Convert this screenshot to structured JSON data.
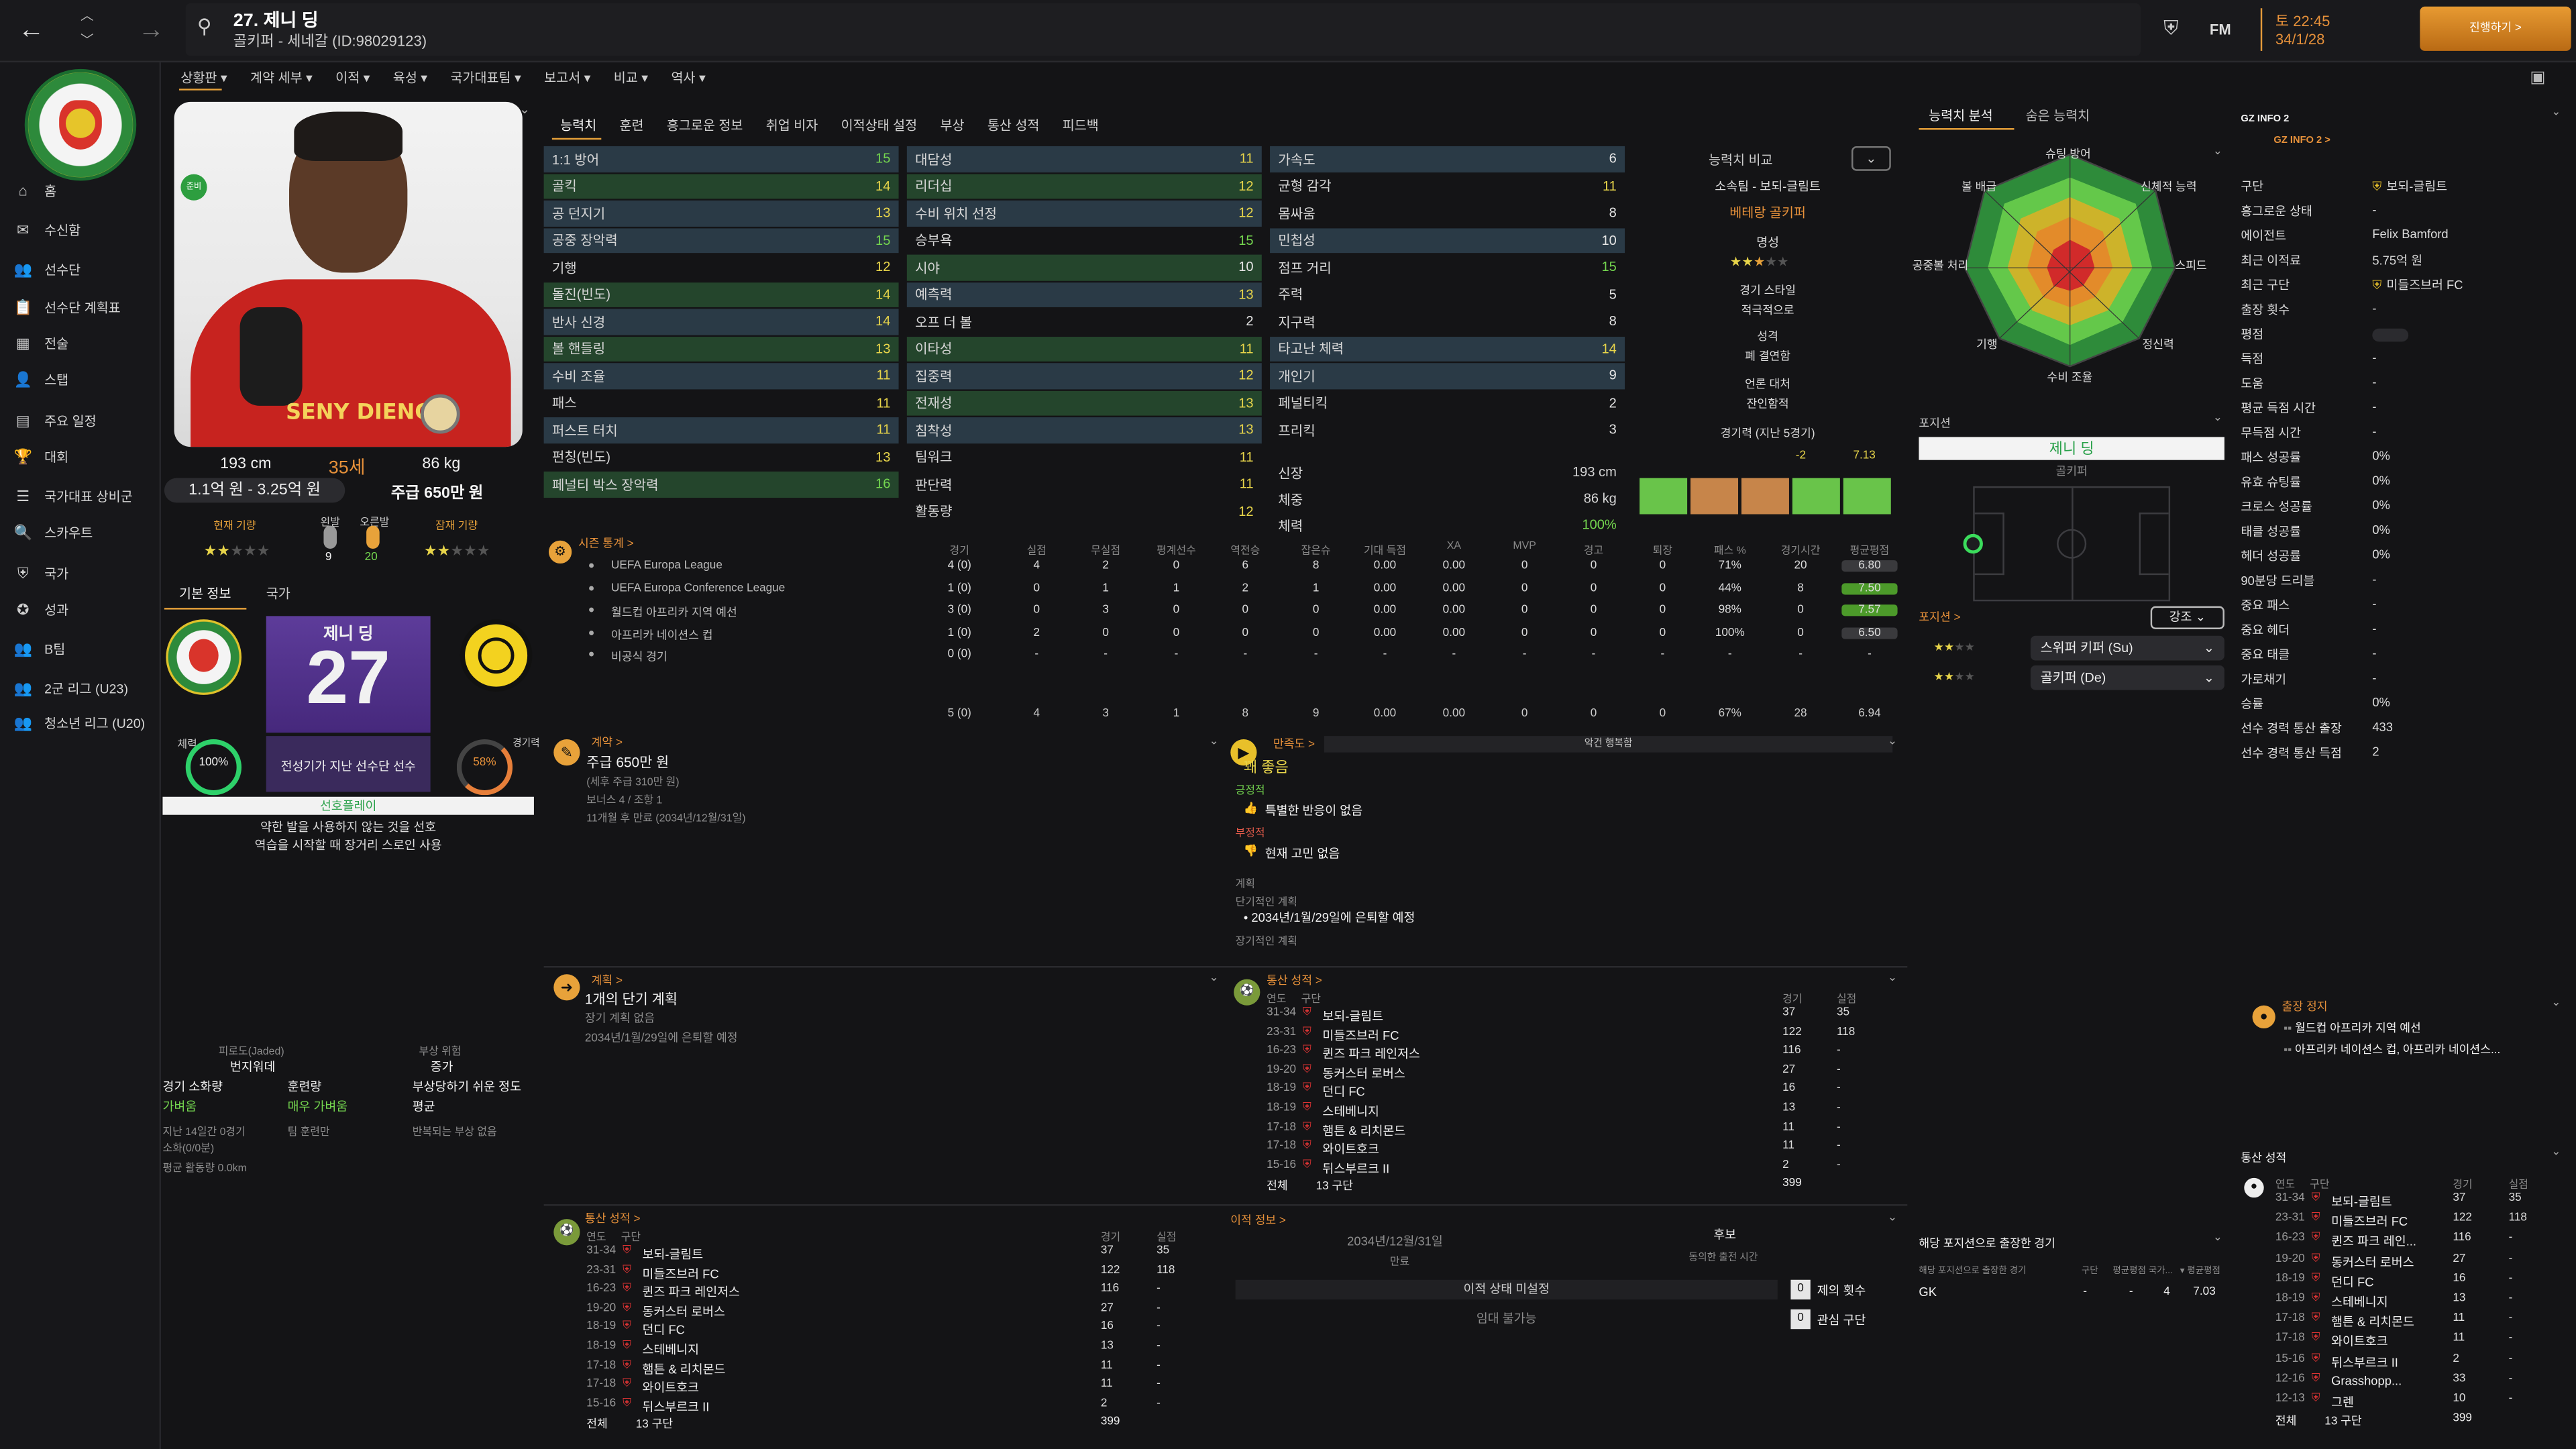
{
  "window": {
    "title": "27. 제니 딩",
    "subtitle": "골키퍼 - 세네갈 (ID:98029123)",
    "date": "토 22:45",
    "date2": "34/1/28",
    "continue": "진행하기 >",
    "fm": "FM"
  },
  "sidebar": {
    "items": [
      "홈",
      "수신함",
      "선수단",
      "선수단 계획표",
      "전술",
      "스탭",
      "주요 일정",
      "대회",
      "국가대표 상비군",
      "스카우트",
      "국가",
      "성과",
      "B팀",
      "2군 리그 (U23)",
      "청소년 리그 (U20)"
    ]
  },
  "subnav": [
    "상황판 ▾",
    "계약 세부 ▾",
    "이적 ▾",
    "육성 ▾",
    "국가대표팀 ▾",
    "보고서 ▾",
    "비교 ▾",
    "역사 ▾"
  ],
  "tabs": [
    "능력치",
    "훈련",
    "흥그로운 정보",
    "취업 비자",
    "이적상태 설정",
    "부상",
    "통산 성적",
    "피드백"
  ],
  "player": {
    "name_photo": "SENY DIENG",
    "height": "193 cm",
    "age": "35세",
    "weight": "86 kg",
    "value": "1.1억 원 - 3.25억 원",
    "wage": "주급 650만 원",
    "current_label": "현재 기량",
    "potential_label": "잠재 기량",
    "left_foot_label": "왼발",
    "right_foot_label": "오른발",
    "left_foot": "9",
    "right_foot": "20",
    "number": "27",
    "card_name": "제니 딩",
    "card_status": "전성기가 지난 선수단 선수",
    "fitness_label": "체력",
    "fitness": "100%",
    "condition_label": "경기력",
    "condition": "58%",
    "playstyle_label": "선호플레이",
    "playstyle_1": "약한 발을 사용하지 않는 것을 선호",
    "playstyle_2": "역습을 시작할 때 장거리 스로인 사용",
    "tab1": "기본 정보",
    "tab2": "국가",
    "badge_on": "준비"
  },
  "gk_attrs": [
    [
      "1:1 방어",
      "15"
    ],
    [
      "골킥",
      "14"
    ],
    [
      "공 던지기",
      "13"
    ],
    [
      "공중 장악력",
      "15"
    ],
    [
      "기행",
      "12"
    ],
    [
      "돌진(빈도)",
      "14"
    ],
    [
      "반사 신경",
      "14"
    ],
    [
      "볼 핸들링",
      "13"
    ],
    [
      "수비 조율",
      "11"
    ],
    [
      "패스",
      "11"
    ],
    [
      "퍼스트 터치",
      "11"
    ],
    [
      "펀칭(빈도)",
      "13"
    ],
    [
      "페널티 박스 장악력",
      "16"
    ]
  ],
  "mental_attrs": [
    [
      "대담성",
      "11"
    ],
    [
      "리더십",
      "12"
    ],
    [
      "수비 위치 선정",
      "12"
    ],
    [
      "승부욕",
      "15"
    ],
    [
      "시야",
      "10"
    ],
    [
      "예측력",
      "13"
    ],
    [
      "오프 더 볼",
      "2"
    ],
    [
      "이타성",
      "11"
    ],
    [
      "집중력",
      "12"
    ],
    [
      "전재성",
      "13"
    ],
    [
      "침착성",
      "13"
    ],
    [
      "팀워크",
      "11"
    ],
    [
      "판단력",
      "11"
    ],
    [
      "활동량",
      "12"
    ]
  ],
  "phys_attrs": [
    [
      "가속도",
      "6"
    ],
    [
      "균형 감각",
      "11"
    ],
    [
      "몸싸움",
      "8"
    ],
    [
      "민첩성",
      "10"
    ],
    [
      "점프 거리",
      "15"
    ],
    [
      "주력",
      "5"
    ],
    [
      "지구력",
      "8"
    ],
    [
      "타고난 체력",
      "14"
    ],
    [
      "개인기",
      "9"
    ],
    [
      "페널티킥",
      "2"
    ],
    [
      "프리킥",
      "3"
    ]
  ],
  "phys_extra": {
    "height_label": "신장",
    "height": "193 cm",
    "weight_label": "체중",
    "weight": "86 kg",
    "fitness_label": "체력",
    "fitness": "100%"
  },
  "compare": {
    "label": "능력치 비교",
    "club": "소속팀 - 보되-글림트",
    "role": "베테랑 골키퍼",
    "rep_label": "명성",
    "style_label": "경기 스타일",
    "style": "적극적으로",
    "personality_label": "성격",
    "personality": "폐 결연함",
    "media_label": "언론 대처",
    "media": "잔인함적",
    "form_label": "경기력 (지난 5경기)",
    "form_val": "-2",
    "form_avg": "7.13"
  },
  "season_stats": {
    "title": "시즌 통계 >",
    "headers": [
      "경기",
      "실점",
      "무실점",
      "평계선수",
      "역전승",
      "잡은슈",
      "기대 득점",
      "XA",
      "MVP",
      "경고",
      "퇴장",
      "패스 %",
      "경기시간",
      "평균평점"
    ],
    "rows": [
      {
        "comp": "UEFA Europa League",
        "vals": [
          "4 (0)",
          "4",
          "2",
          "0",
          "6",
          "8",
          "0.00",
          "0.00",
          "0",
          "0",
          "0",
          "71%",
          "20",
          "6.80"
        ]
      },
      {
        "comp": "UEFA Europa Conference League",
        "vals": [
          "1 (0)",
          "0",
          "1",
          "1",
          "2",
          "1",
          "0.00",
          "0.00",
          "0",
          "0",
          "0",
          "44%",
          "8",
          "7.50"
        ]
      },
      {
        "comp": "월드컵 아프리카 지역 예선",
        "vals": [
          "3 (0)",
          "0",
          "3",
          "0",
          "0",
          "0",
          "0.00",
          "0.00",
          "0",
          "0",
          "0",
          "98%",
          "0",
          "7.57"
        ]
      },
      {
        "comp": "아프리카 네이션스 컵",
        "vals": [
          "1 (0)",
          "2",
          "0",
          "0",
          "0",
          "0",
          "0.00",
          "0.00",
          "0",
          "0",
          "0",
          "100%",
          "0",
          "6.50"
        ]
      },
      {
        "comp": "비공식 경기",
        "vals": [
          "0 (0)",
          "-",
          "-",
          "-",
          "-",
          "-",
          "-",
          "-",
          "-",
          "-",
          "-",
          "-",
          "-",
          "-"
        ]
      }
    ],
    "total": [
      "5 (0)",
      "4",
      "3",
      "1",
      "8",
      "9",
      "0.00",
      "0.00",
      "0",
      "0",
      "0",
      "67%",
      "28",
      "6.94"
    ]
  },
  "contract": {
    "title": "계약 >",
    "wage": "주급 650만 원",
    "wage_sub": "(세후 주급 310만 원)",
    "bonus": "보너스 4 / 조항 1",
    "expires": "11개월 후 만료 (2034년/12월/31일)"
  },
  "satisfaction": {
    "title": "만족도 >",
    "level": "꽤 좋음",
    "concerns": "악건 행복함",
    "pos_label": "긍정적",
    "pos": "특별한 반응이 없음",
    "neg_label": "부정적",
    "neg": "현재 고민 없음",
    "plan_label": "계획",
    "short_label": "단기적인 계획",
    "short": "2034년/1월/29일에 은퇴할 예정",
    "long_label": "장기적인 계획"
  },
  "plans": {
    "title": "계획 >",
    "count": "1개의 단기 계획",
    "sub": "장기 계획 없음",
    "detail": "2034년/1월/29일에 은퇴할 예정"
  },
  "career": {
    "title": "통산 성적 >",
    "headers": [
      "연도",
      "구단",
      "경기",
      "실점"
    ],
    "rows": [
      [
        "31-34",
        "보되-글림트",
        "37",
        "35"
      ],
      [
        "23-31",
        "미들즈브러 FC",
        "122",
        "118"
      ],
      [
        "16-23",
        "퀸즈 파크 레인저스",
        "116",
        "-"
      ],
      [
        "19-20",
        "동커스터 로버스",
        "27",
        "-"
      ],
      [
        "18-19",
        "던디 FC",
        "16",
        "-"
      ],
      [
        "18-19",
        "스테베니지",
        "13",
        "-"
      ],
      [
        "17-18",
        "햄튼 & 리치몬드",
        "11",
        "-"
      ],
      [
        "17-18",
        "와이트호크",
        "11",
        "-"
      ],
      [
        "15-16",
        "뒤스부르크 II",
        "2",
        "-"
      ]
    ],
    "total_label": "전체",
    "total_clubs": "13 구단",
    "total": "399"
  },
  "career_left": {
    "title": "통산 성적 >"
  },
  "transfer": {
    "title": "이적 정보 >",
    "date": "2034년/12월/31일",
    "date_label": "만료",
    "status": "이적 상태 미설정",
    "status2": "임대 불가능",
    "fut": "후보",
    "fut_label": "동의한 출전 시간",
    "offers": "제의 횟수",
    "offers_v": "0",
    "interest": "관심 구단",
    "interest_v": "0"
  },
  "left_lower": {
    "injury_label": "피로도(Jaded)",
    "injury_v": "번지워데",
    "risk_label": "부상 위험",
    "risk_v": "증가",
    "match_label": "경기 소화량",
    "match_v": "가벼움",
    "train_label": "훈련량",
    "train_v": "매우 가벼움",
    "inj_label": "부상당하기 쉬운 정도",
    "inj_v": "평균",
    "last_label": "지난 14일간 0경기",
    "last2": "소화(0/0분)",
    "team": "팀 훈련만",
    "recur": "반복되는 부상 없음",
    "dist": "평균 활동량 0.0km"
  },
  "radar": {
    "tab1": "능력치 분석",
    "tab2": "숨은 능력치",
    "labels": [
      "슈팅 방어",
      "신체적 능력",
      "스피드",
      "정신력",
      "수비 조율",
      "기행",
      "공중볼 처리",
      "볼 배급"
    ]
  },
  "position": {
    "label": "포지션",
    "name": "제니 딩",
    "role": "골키퍼",
    "sub_label": "포지션 >",
    "btn": "강조",
    "role1": "스위퍼 키퍼 (Su)",
    "role2": "골키퍼 (De)",
    "played_label": "해당 포지션으로 출장한 경기",
    "played_sub": "해당 포지션으로 출장한 경기",
    "pos": "GK",
    "cols": [
      "구단",
      "평균평점 국가...",
      "▾ 평균평점"
    ],
    "vals": [
      "-",
      "-",
      "4",
      "7.03"
    ]
  },
  "info": {
    "title": "GZ INFO 2",
    "sub": "GZ INFO 2 >",
    "rows": [
      [
        "구단",
        "보되-글림트"
      ],
      [
        "흥그로운 상태",
        "-"
      ],
      [
        "에이전트",
        "Felix Bamford"
      ],
      [
        "최근 이적료",
        "5.75억 원"
      ],
      [
        "최근 구단",
        "미들즈브러 FC"
      ],
      [
        "출장 횟수",
        "-"
      ],
      [
        "평점",
        ""
      ],
      [
        "득점",
        "-"
      ],
      [
        "도움",
        "-"
      ],
      [
        "평균 득점 시간",
        "-"
      ],
      [
        "무득점 시간",
        "-"
      ],
      [
        "패스 성공률",
        "0%"
      ],
      [
        "유효 슈팅률",
        "0%"
      ],
      [
        "크로스 성공률",
        "0%"
      ],
      [
        "태클 성공률",
        "0%"
      ],
      [
        "헤더 성공률",
        "0%"
      ],
      [
        "90분당 드리블",
        "-"
      ],
      [
        "중요 패스",
        "-"
      ],
      [
        "중요 헤더",
        "-"
      ],
      [
        "중요 태클",
        "-"
      ],
      [
        "가로채기",
        "-"
      ],
      [
        "승률",
        "0%"
      ],
      [
        "선수 경력 통산 출장",
        "433"
      ],
      [
        "선수 경력 통산 득점",
        "2"
      ]
    ]
  },
  "suspension": {
    "title": "출장 정지",
    "r1": "월드컵 아프리카 지역 예선",
    "r2": "아프리카 네이션스 컵, 아프리카 네이션스..."
  },
  "right_career": {
    "title": "통산 성적",
    "rows": [
      [
        "31-34",
        "보되-글림트",
        "37",
        "35"
      ],
      [
        "23-31",
        "미들즈브러 FC",
        "122",
        "118"
      ],
      [
        "16-23",
        "퀸즈 파크 레인...",
        "116",
        "-"
      ],
      [
        "19-20",
        "동커스터 로버스",
        "27",
        "-"
      ],
      [
        "18-19",
        "던디 FC",
        "16",
        "-"
      ],
      [
        "18-19",
        "스테베니지",
        "13",
        "-"
      ],
      [
        "17-18",
        "햄튼 & 리치몬드",
        "11",
        "-"
      ],
      [
        "17-18",
        "와이트호크",
        "11",
        "-"
      ],
      [
        "15-16",
        "뒤스부르크 II",
        "2",
        "-"
      ],
      [
        "12-16",
        "Grasshopp...",
        "33",
        "-"
      ],
      [
        "12-13",
        "그렌",
        "10",
        "-"
      ]
    ],
    "total_label": "전체",
    "total_clubs": "13 구단",
    "total": "399"
  },
  "colors": {
    "accent": "#e8a23a",
    "green": "#74d64f",
    "yellow": "#e8d54a",
    "hl": "#2a3a46"
  }
}
